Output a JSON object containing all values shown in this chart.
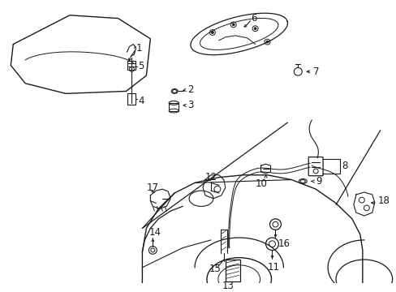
{
  "bg_color": "#ffffff",
  "line_color": "#1a1a1a",
  "fig_width": 4.89,
  "fig_height": 3.6,
  "dpi": 100,
  "font_size": 8.5
}
